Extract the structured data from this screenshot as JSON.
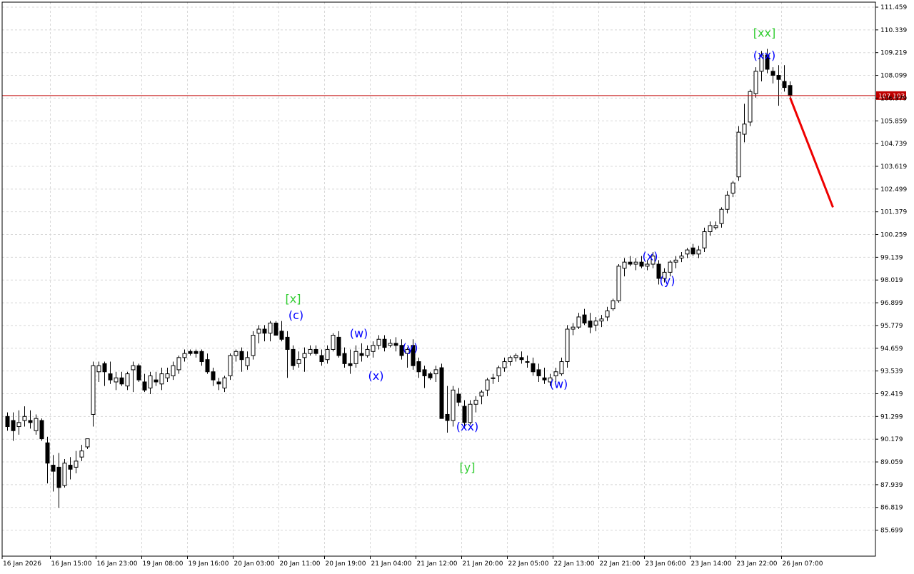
{
  "chart_data": {
    "type": "candlestick",
    "y_axis": {
      "ticks": [
        "111.459",
        "110.339",
        "109.219",
        "108.099",
        "106.979",
        "105.859",
        "104.739",
        "103.619",
        "102.499",
        "101.379",
        "100.259",
        "99.139",
        "98.019",
        "96.899",
        "95.779",
        "94.659",
        "93.539",
        "92.419",
        "91.299",
        "90.179",
        "89.059",
        "87.939",
        "86.819",
        "85.699"
      ],
      "range": [
        84.9,
        111.7
      ]
    },
    "x_axis": {
      "ticks": [
        "16 Jan 2026",
        "16 Jan 15:00",
        "16 Jan 23:00",
        "19 Jan 08:00",
        "19 Jan 16:00",
        "20 Jan 03:00",
        "20 Jan 11:00",
        "20 Jan 19:00",
        "21 Jan 04:00",
        "21 Jan 12:00",
        "21 Jan 20:00",
        "22 Jan 05:00",
        "22 Jan 13:00",
        "22 Jan 21:00",
        "23 Jan 06:00",
        "23 Jan 14:00",
        "23 Jan 22:00",
        "26 Jan 07:00"
      ],
      "bars_per_tick": 8
    },
    "grid": true,
    "current_price": {
      "label": "107.103",
      "value": 107.103,
      "color": "#c00000"
    },
    "forecast": {
      "from_bar": 137,
      "to_bar": 144.5,
      "from_value": 107.0,
      "to_value": 101.6,
      "color": "#ee0000"
    },
    "candles": [
      [
        91.3,
        91.5,
        90.6,
        90.8
      ],
      [
        91.1,
        91.5,
        90.1,
        90.6
      ],
      [
        90.8,
        91.6,
        90.4,
        91.0
      ],
      [
        91.1,
        91.8,
        90.8,
        91.3
      ],
      [
        91.1,
        91.6,
        90.7,
        91.0
      ],
      [
        90.6,
        91.4,
        90.4,
        91.2
      ],
      [
        91.1,
        91.2,
        90.1,
        90.2
      ],
      [
        90.0,
        90.3,
        88.0,
        89.0
      ],
      [
        88.9,
        89.4,
        87.6,
        88.6
      ],
      [
        88.8,
        89.5,
        86.8,
        87.8
      ],
      [
        87.9,
        89.2,
        87.8,
        89.0
      ],
      [
        88.9,
        89.3,
        88.2,
        88.7
      ],
      [
        88.8,
        89.6,
        88.5,
        89.1
      ],
      [
        89.3,
        89.9,
        89.1,
        89.6
      ],
      [
        89.8,
        90.2,
        89.7,
        90.2
      ],
      [
        91.4,
        94.0,
        90.8,
        93.8
      ],
      [
        93.5,
        94.0,
        93.0,
        93.8
      ],
      [
        93.9,
        94.0,
        92.8,
        93.5
      ],
      [
        93.4,
        94.0,
        92.9,
        93.1
      ],
      [
        93.0,
        93.5,
        92.6,
        93.2
      ],
      [
        93.2,
        93.5,
        92.8,
        92.9
      ],
      [
        92.8,
        93.5,
        92.6,
        93.4
      ],
      [
        93.6,
        94.0,
        92.5,
        93.8
      ],
      [
        93.8,
        93.9,
        93.0,
        93.1
      ],
      [
        93.0,
        93.4,
        92.5,
        92.6
      ],
      [
        92.7,
        93.5,
        92.4,
        93.3
      ],
      [
        93.1,
        93.5,
        92.8,
        93.0
      ],
      [
        92.9,
        93.7,
        92.6,
        93.4
      ],
      [
        93.2,
        93.7,
        93.0,
        93.4
      ],
      [
        93.3,
        94.0,
        93.1,
        93.8
      ],
      [
        93.6,
        94.3,
        93.4,
        94.2
      ],
      [
        94.2,
        94.6,
        94.0,
        94.4
      ],
      [
        94.5,
        94.6,
        94.3,
        94.4
      ],
      [
        94.5,
        94.6,
        94.2,
        94.4
      ],
      [
        94.5,
        94.6,
        93.8,
        94.0
      ],
      [
        94.1,
        94.4,
        93.4,
        93.5
      ],
      [
        93.5,
        93.7,
        92.8,
        93.1
      ],
      [
        93.0,
        93.2,
        92.6,
        92.9
      ],
      [
        92.7,
        93.3,
        92.5,
        93.2
      ],
      [
        93.3,
        94.4,
        93.1,
        94.3
      ],
      [
        94.3,
        94.6,
        94.0,
        94.5
      ],
      [
        94.5,
        94.7,
        93.5,
        94.1
      ],
      [
        93.8,
        94.5,
        93.6,
        94.2
      ],
      [
        94.3,
        95.5,
        94.1,
        95.3
      ],
      [
        95.4,
        95.8,
        94.9,
        95.6
      ],
      [
        95.6,
        95.8,
        95.0,
        95.4
      ],
      [
        95.4,
        96.0,
        95.0,
        95.9
      ],
      [
        95.9,
        96.0,
        95.3,
        95.3
      ],
      [
        95.5,
        96.0,
        95.0,
        95.1
      ],
      [
        95.2,
        95.5,
        93.2,
        94.6
      ],
      [
        94.6,
        94.8,
        93.6,
        93.8
      ],
      [
        93.9,
        94.5,
        93.7,
        94.1
      ],
      [
        94.2,
        94.7,
        93.5,
        94.4
      ],
      [
        94.4,
        94.8,
        94.3,
        94.6
      ],
      [
        94.6,
        94.8,
        94.3,
        94.4
      ],
      [
        94.3,
        94.6,
        93.8,
        94.0
      ],
      [
        94.1,
        94.8,
        93.9,
        94.6
      ],
      [
        94.6,
        95.4,
        94.5,
        95.3
      ],
      [
        95.2,
        95.5,
        94.2,
        94.3
      ],
      [
        94.4,
        94.7,
        93.7,
        93.9
      ],
      [
        93.9,
        94.6,
        93.4,
        93.8
      ],
      [
        93.9,
        94.8,
        93.7,
        94.5
      ],
      [
        94.4,
        94.9,
        94.0,
        94.3
      ],
      [
        94.3,
        94.8,
        94.2,
        94.6
      ],
      [
        94.5,
        95.0,
        94.2,
        94.8
      ],
      [
        94.8,
        95.3,
        94.6,
        95.1
      ],
      [
        95.1,
        95.3,
        94.5,
        94.7
      ],
      [
        94.8,
        95.1,
        94.7,
        94.9
      ],
      [
        94.9,
        95.2,
        94.5,
        94.8
      ],
      [
        94.8,
        95.1,
        94.1,
        94.3
      ],
      [
        94.4,
        94.7,
        93.7,
        94.6
      ],
      [
        94.8,
        95.1,
        93.6,
        93.8
      ],
      [
        94.0,
        94.2,
        93.2,
        93.5
      ],
      [
        93.6,
        93.8,
        92.7,
        93.3
      ],
      [
        93.4,
        93.5,
        93.1,
        93.2
      ],
      [
        93.4,
        93.8,
        93.0,
        93.6
      ],
      [
        93.7,
        93.9,
        91.2,
        91.2
      ],
      [
        91.4,
        92.8,
        90.5,
        91.1
      ],
      [
        91.1,
        92.8,
        90.8,
        92.6
      ],
      [
        92.4,
        92.7,
        91.8,
        92.0
      ],
      [
        91.8,
        92.1,
        90.7,
        91.0
      ],
      [
        91.0,
        92.1,
        90.9,
        91.9
      ],
      [
        91.9,
        92.3,
        91.5,
        92.1
      ],
      [
        92.3,
        92.6,
        91.9,
        92.5
      ],
      [
        92.6,
        93.2,
        92.3,
        93.1
      ],
      [
        93.2,
        93.4,
        92.9,
        93.2
      ],
      [
        93.3,
        93.8,
        93.0,
        93.7
      ],
      [
        93.7,
        94.2,
        93.5,
        94.0
      ],
      [
        94.0,
        94.3,
        93.8,
        94.2
      ],
      [
        94.2,
        94.4,
        94.0,
        94.3
      ],
      [
        94.2,
        94.5,
        93.9,
        94.1
      ],
      [
        94.0,
        94.3,
        93.7,
        94.0
      ],
      [
        93.9,
        94.2,
        93.3,
        93.5
      ],
      [
        93.6,
        93.9,
        93.0,
        93.3
      ],
      [
        93.2,
        93.7,
        92.9,
        93.1
      ],
      [
        93.0,
        93.4,
        92.8,
        93.2
      ],
      [
        93.3,
        93.7,
        93.0,
        93.5
      ],
      [
        93.4,
        94.2,
        93.3,
        94.0
      ],
      [
        94.0,
        95.8,
        93.7,
        95.6
      ],
      [
        95.6,
        95.9,
        95.3,
        95.7
      ],
      [
        95.7,
        96.4,
        95.6,
        96.2
      ],
      [
        96.3,
        96.6,
        95.8,
        95.9
      ],
      [
        96.0,
        96.4,
        95.4,
        95.7
      ],
      [
        95.8,
        96.2,
        95.5,
        96.0
      ],
      [
        96.0,
        96.3,
        95.7,
        96.1
      ],
      [
        96.2,
        96.7,
        96.0,
        96.5
      ],
      [
        96.6,
        97.1,
        96.5,
        97.0
      ],
      [
        97.0,
        98.8,
        96.9,
        98.7
      ],
      [
        98.6,
        99.1,
        98.2,
        98.9
      ],
      [
        98.9,
        99.2,
        98.7,
        98.8
      ],
      [
        98.8,
        99.1,
        98.5,
        98.9
      ],
      [
        98.9,
        99.2,
        98.6,
        98.7
      ],
      [
        98.7,
        99.0,
        98.5,
        98.8
      ],
      [
        98.8,
        99.4,
        98.6,
        99.2
      ],
      [
        98.8,
        99.0,
        97.8,
        98.1
      ],
      [
        98.1,
        98.6,
        97.9,
        98.4
      ],
      [
        98.4,
        99.0,
        98.2,
        98.9
      ],
      [
        98.9,
        99.2,
        98.6,
        99.0
      ],
      [
        99.1,
        99.4,
        98.9,
        99.2
      ],
      [
        99.3,
        99.6,
        99.1,
        99.5
      ],
      [
        99.6,
        99.8,
        99.2,
        99.3
      ],
      [
        99.3,
        99.7,
        99.1,
        99.5
      ],
      [
        99.6,
        100.6,
        99.4,
        100.4
      ],
      [
        100.4,
        100.9,
        100.2,
        100.7
      ],
      [
        100.6,
        100.9,
        100.5,
        100.7
      ],
      [
        100.8,
        101.6,
        100.6,
        101.5
      ],
      [
        101.5,
        102.4,
        101.3,
        102.2
      ],
      [
        102.3,
        102.9,
        102.1,
        102.8
      ],
      [
        103.1,
        105.6,
        102.9,
        105.3
      ],
      [
        105.2,
        106.7,
        104.8,
        105.7
      ],
      [
        105.8,
        107.4,
        105.6,
        107.3
      ],
      [
        107.2,
        108.5,
        107.0,
        108.3
      ],
      [
        108.3,
        109.3,
        107.8,
        109.1
      ],
      [
        109.1,
        109.4,
        108.2,
        108.4
      ],
      [
        108.3,
        108.5,
        107.7,
        108.1
      ],
      [
        108.1,
        108.6,
        106.6,
        107.9
      ],
      [
        107.8,
        108.6,
        107.3,
        107.5
      ],
      [
        107.6,
        107.8,
        106.9,
        107.1
      ]
    ],
    "annotations": [
      {
        "text": "[x]",
        "bar": 50,
        "value": 96.9,
        "color": "#32cd32"
      },
      {
        "text": "(c)",
        "bar": 50.5,
        "value": 96.1,
        "color": "#0000ff"
      },
      {
        "text": "(w)",
        "bar": 61.5,
        "value": 95.2,
        "color": "#0000ff"
      },
      {
        "text": "(x)",
        "bar": 64.5,
        "value": 93.1,
        "color": "#0000ff"
      },
      {
        "text": "(y)",
        "bar": 70.5,
        "value": 94.5,
        "color": "#0000ff"
      },
      {
        "text": "(xx)",
        "bar": 80.5,
        "value": 90.6,
        "color": "#0000ff"
      },
      {
        "text": "[y]",
        "bar": 80.5,
        "value": 88.6,
        "color": "#32cd32"
      },
      {
        "text": "(w)",
        "bar": 96.5,
        "value": 92.7,
        "color": "#0000ff"
      },
      {
        "text": "(x)",
        "bar": 112.5,
        "value": 99.0,
        "color": "#0000ff"
      },
      {
        "text": "(y)",
        "bar": 115.5,
        "value": 97.8,
        "color": "#0000ff"
      },
      {
        "text": "(xx)",
        "bar": 132.5,
        "value": 108.9,
        "color": "#0000ff"
      },
      {
        "text": "[xx]",
        "bar": 132.5,
        "value": 110.0,
        "color": "#32cd32"
      }
    ]
  }
}
